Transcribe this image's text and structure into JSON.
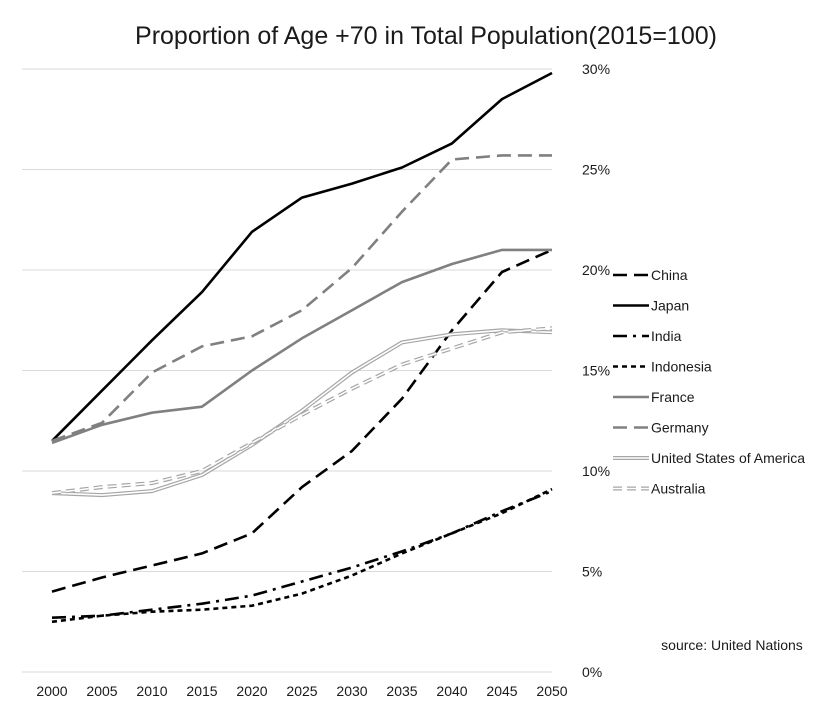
{
  "chart_data": {
    "type": "line",
    "title": "Proportion of Age +70  in Total Population(2015=100)",
    "xlabel": "",
    "ylabel": "",
    "x": [
      "2000",
      "2005",
      "2010",
      "2015",
      "2020",
      "2025",
      "2030",
      "2035",
      "2040",
      "2045",
      "2050"
    ],
    "ylim": [
      0,
      30
    ],
    "y_ticks": [
      "0%",
      "5%",
      "10%",
      "15%",
      "20%",
      "25%",
      "30%"
    ],
    "y_axis_side": "right",
    "grid": true,
    "legend_position": "right",
    "source_note": "source: United Nations",
    "series": [
      {
        "name": "China",
        "color": "#000000",
        "style": "dash",
        "values": [
          4.0,
          4.7,
          5.3,
          5.9,
          6.9,
          9.2,
          11.0,
          13.6,
          17.0,
          19.9,
          21.0
        ]
      },
      {
        "name": "Japan",
        "color": "#000000",
        "style": "solid",
        "values": [
          11.5,
          14.0,
          16.5,
          18.9,
          21.9,
          23.6,
          24.3,
          25.1,
          26.3,
          28.5,
          29.8
        ]
      },
      {
        "name": "India",
        "color": "#000000",
        "style": "dashdot",
        "values": [
          2.7,
          2.8,
          3.1,
          3.4,
          3.8,
          4.5,
          5.2,
          6.0,
          6.9,
          8.0,
          9.0
        ]
      },
      {
        "name": "Indonesia",
        "color": "#000000",
        "style": "dot",
        "values": [
          2.5,
          2.8,
          3.0,
          3.1,
          3.3,
          3.9,
          4.8,
          5.9,
          6.9,
          7.9,
          9.1
        ]
      },
      {
        "name": "France",
        "color": "#808080",
        "style": "solid",
        "values": [
          11.4,
          12.3,
          12.9,
          13.2,
          15.0,
          16.6,
          18.0,
          19.4,
          20.3,
          21.0,
          21.0
        ]
      },
      {
        "name": "Germany",
        "color": "#808080",
        "style": "dash",
        "values": [
          11.5,
          12.4,
          14.9,
          16.2,
          16.7,
          18.0,
          20.1,
          22.9,
          25.5,
          25.7,
          25.7
        ]
      },
      {
        "name": "United States of America",
        "color": "#a6a6a6",
        "style": "double",
        "values": [
          8.9,
          8.8,
          9.0,
          9.8,
          11.3,
          13.0,
          14.9,
          16.4,
          16.8,
          17.0,
          16.9
        ]
      },
      {
        "name": "Australia",
        "color": "#a6a6a6",
        "style": "double-dash",
        "values": [
          8.9,
          9.2,
          9.4,
          10.0,
          11.4,
          12.8,
          14.1,
          15.3,
          16.1,
          16.9,
          17.1
        ]
      }
    ]
  }
}
